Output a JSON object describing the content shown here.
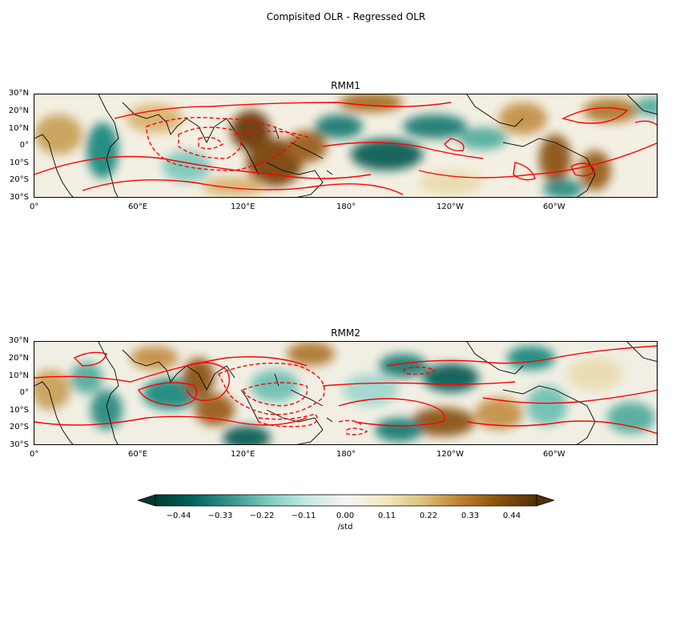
{
  "figure": {
    "title": "Compisited OLR - Regressed OLR"
  },
  "panels": [
    {
      "id": "rmm1",
      "title": "RMM1"
    },
    {
      "id": "rmm2",
      "title": "RMM2"
    }
  ],
  "axes": {
    "x_ticks": [
      "0°",
      "60°E",
      "120°E",
      "180°",
      "120°W",
      "60°W"
    ],
    "y_ticks": [
      "30°N",
      "20°N",
      "10°N",
      "0°",
      "10°S",
      "20°S",
      "30°S"
    ]
  },
  "colorbar": {
    "colormap": "BrBG (reversed: teal negative, brown positive)",
    "ticks": [
      "−0.44",
      "−0.33",
      "−0.22",
      "−0.11",
      "0.00",
      "0.11",
      "0.22",
      "0.33",
      "0.44"
    ],
    "label": "/std",
    "extend": "both",
    "colors": [
      "#003c30",
      "#01665e",
      "#35978f",
      "#80cdc1",
      "#c7eae5",
      "#f5f5f5",
      "#f6e8c3",
      "#dfc27d",
      "#bf812d",
      "#8c510a",
      "#543005"
    ]
  },
  "overlay": {
    "contour_color": "#ff0000",
    "coastline_color": "#000000"
  }
}
